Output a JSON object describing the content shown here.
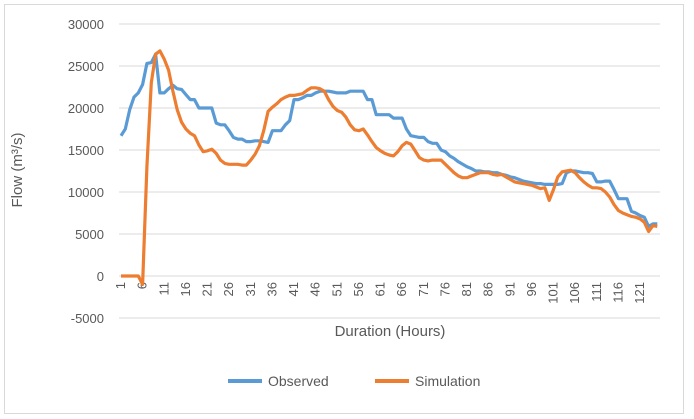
{
  "chart_data": {
    "type": "line",
    "title": "",
    "xlabel": "Duration (Hours)",
    "ylabel": "Flow (m³/s)",
    "ylim": [
      -5000,
      30000
    ],
    "yticks": [
      -5000,
      0,
      5000,
      10000,
      15000,
      20000,
      25000,
      30000
    ],
    "ytick_labels": [
      "-5000",
      "0",
      "5000",
      "10000",
      "15000",
      "20000",
      "25000",
      "30000"
    ],
    "xtick_labels": [
      "1",
      "6",
      "11",
      "16",
      "21",
      "26",
      "31",
      "36",
      "41",
      "46",
      "51",
      "56",
      "61",
      "66",
      "71",
      "76",
      "81",
      "86",
      "91",
      "96",
      "101",
      "106",
      "111",
      "116",
      "121"
    ],
    "x_start": 1,
    "grid": true,
    "legend_position": "bottom",
    "series": [
      {
        "name": "Observed",
        "color": "#5b9bd5",
        "values": [
          16700,
          17500,
          19800,
          21300,
          21800,
          22800,
          25300,
          25400,
          26400,
          21800,
          21800,
          22300,
          22700,
          22300,
          22200,
          21600,
          21000,
          21000,
          20000,
          20000,
          20000,
          20000,
          18200,
          18000,
          18000,
          17300,
          16500,
          16300,
          16300,
          16000,
          16000,
          16100,
          16100,
          16000,
          15900,
          17300,
          17300,
          17300,
          18000,
          18500,
          21000,
          21000,
          21200,
          21500,
          21500,
          21800,
          22000,
          22000,
          22000,
          21900,
          21800,
          21800,
          21800,
          22000,
          22000,
          22000,
          22000,
          21000,
          21000,
          19200,
          19200,
          19200,
          19200,
          18800,
          18800,
          18800,
          17500,
          16700,
          16600,
          16500,
          16500,
          16000,
          15800,
          15800,
          15000,
          14800,
          14300,
          14000,
          13600,
          13300,
          13000,
          12800,
          12500,
          12500,
          12400,
          12400,
          12300,
          12300,
          12100,
          12000,
          11800,
          11700,
          11500,
          11300,
          11200,
          11100,
          11000,
          11000,
          10900,
          10900,
          10900,
          10900,
          11000,
          12300,
          12500,
          12500,
          12400,
          12300,
          12300,
          12200,
          11200,
          11200,
          11300,
          11300,
          10300,
          9200,
          9200,
          9200,
          7700,
          7500,
          7200,
          7000,
          5900,
          6200,
          6200
        ]
      },
      {
        "name": "Simulation",
        "color": "#ed7d31",
        "values": [
          0,
          0,
          0,
          0,
          0,
          -1000,
          13000,
          23000,
          26400,
          26800,
          25800,
          24500,
          22000,
          19800,
          18300,
          17500,
          17000,
          16700,
          15600,
          14800,
          14900,
          15100,
          14600,
          13800,
          13400,
          13300,
          13300,
          13300,
          13200,
          13200,
          13800,
          14500,
          15500,
          17300,
          19600,
          20100,
          20500,
          21000,
          21300,
          21500,
          21500,
          21600,
          21700,
          22100,
          22400,
          22400,
          22300,
          22000,
          21000,
          20200,
          19700,
          19500,
          18900,
          18000,
          17400,
          17300,
          17500,
          16800,
          16000,
          15300,
          14900,
          14600,
          14400,
          14300,
          14800,
          15500,
          15900,
          15700,
          14900,
          14100,
          13800,
          13700,
          13800,
          13800,
          13800,
          13300,
          12800,
          12300,
          11900,
          11700,
          11700,
          11900,
          12100,
          12300,
          12300,
          12300,
          12100,
          12000,
          12100,
          11800,
          11500,
          11200,
          11100,
          11000,
          10900,
          10800,
          10600,
          10400,
          10500,
          9000,
          10300,
          11800,
          12400,
          12500,
          12600,
          12300,
          11700,
          11200,
          10800,
          10500,
          10500,
          10400,
          10000,
          9400,
          8500,
          7800,
          7500,
          7300,
          7100,
          7000,
          6800,
          6400,
          5300,
          6000,
          5900
        ]
      }
    ]
  }
}
